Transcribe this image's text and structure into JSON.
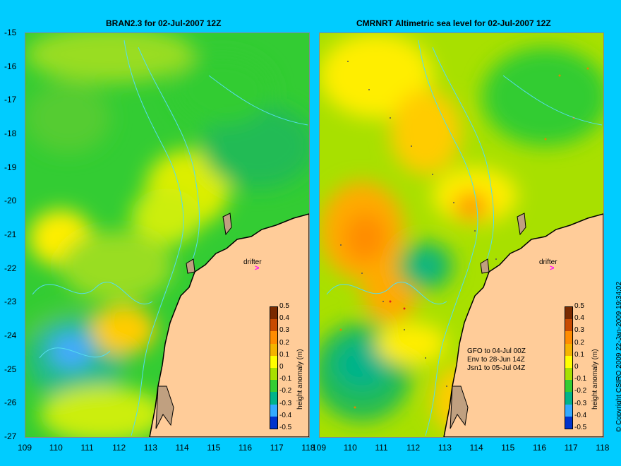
{
  "left_panel": {
    "title": "BRAN2.3 for 02-Jul-2007 12Z",
    "drifter_label": "drifter"
  },
  "right_panel": {
    "title": "CMRNRT Altimetric sea level  for 02-Jul-2007 12Z",
    "drifter_label": "drifter",
    "legend_lines": [
      "GFO to 04-Jul 00Z",
      "Env to 28-Jun 14Z",
      "Jsn1 to 05-Jul 04Z"
    ]
  },
  "y_ticks": [
    "-15",
    "-16",
    "-17",
    "-18",
    "-19",
    "-20",
    "-21",
    "-22",
    "-23",
    "-24",
    "-25",
    "-26",
    "-27"
  ],
  "x_ticks": [
    "109",
    "110",
    "111",
    "112",
    "113",
    "114",
    "115",
    "116",
    "117",
    "118"
  ],
  "colorbar": {
    "title": "height anomaly (m)",
    "labels": [
      "0.5",
      "0.4",
      "0.3",
      "0.2",
      "0.1",
      "0",
      "-0.1",
      "-0.2",
      "-0.3",
      "-0.4",
      "-0.5"
    ],
    "colors": [
      "#7a2a00",
      "#c84a00",
      "#ff8c00",
      "#f5b400",
      "#ffff00",
      "#a8e000",
      "#33cc33",
      "#00b38a",
      "#33aaff",
      "#0033cc",
      "#000070"
    ]
  },
  "copyright": "© Copyright CSIRO 2009   22-Jan-2009 19:34:02",
  "colors": {
    "background": "#00ccff",
    "land": "#ffcc99",
    "shelf": "#c0a080",
    "coast_outline": "#000000",
    "bathy_contour": "#55ddee",
    "drifter_marker": "#ff00ff"
  }
}
